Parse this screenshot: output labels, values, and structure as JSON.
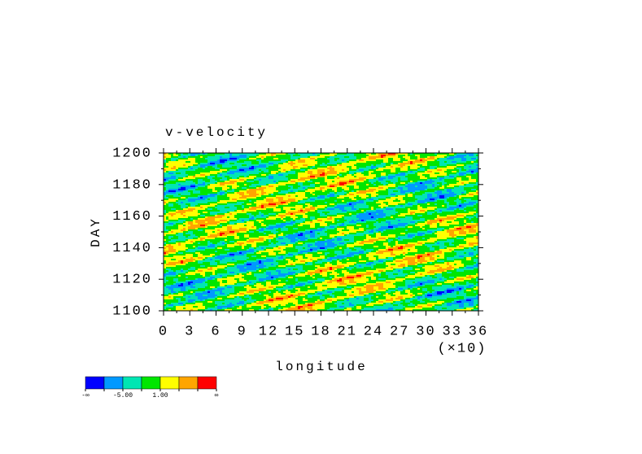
{
  "chart_data": {
    "type": "heatmap",
    "title": "v-velocity",
    "x_label": "longitude",
    "y_label": "DAY",
    "x_multiplier": "(×10)",
    "xlim": [
      0,
      36
    ],
    "xticks": [
      0,
      3,
      6,
      9,
      12,
      15,
      18,
      21,
      24,
      27,
      30,
      33,
      36
    ],
    "ylim": [
      1100,
      1200
    ],
    "yticks": [
      1100,
      1120,
      1140,
      1160,
      1180,
      1200
    ],
    "colorbar": {
      "colors": [
        "#0000ff",
        "#0099ff",
        "#00e6b3",
        "#00e600",
        "#ffff00",
        "#ffa500",
        "#ff0000"
      ],
      "labels": [
        "-∞",
        null,
        "-5.00",
        null,
        "1.00",
        null,
        null,
        "∞"
      ]
    }
  }
}
